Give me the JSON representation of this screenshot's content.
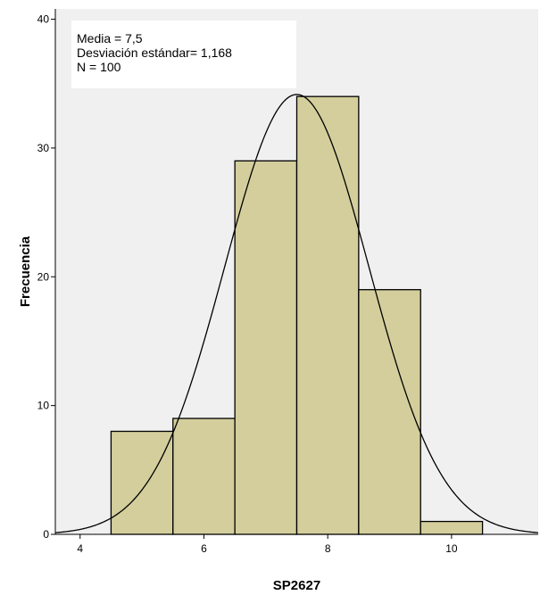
{
  "chart_data": {
    "type": "bar",
    "subtype": "histogram",
    "xlabel": "SP2627",
    "ylabel": "Frecuencia",
    "bins": [
      {
        "x0": 4.5,
        "x1": 5.5,
        "value": 8
      },
      {
        "x0": 5.5,
        "x1": 6.5,
        "value": 9
      },
      {
        "x0": 6.5,
        "x1": 7.5,
        "value": 29
      },
      {
        "x0": 7.5,
        "x1": 8.5,
        "value": 34
      },
      {
        "x0": 8.5,
        "x1": 9.5,
        "value": 19
      },
      {
        "x0": 9.5,
        "x1": 10.5,
        "value": 1
      }
    ],
    "xlim": [
      3.6,
      11.4
    ],
    "ylim": [
      0,
      40.8
    ],
    "xticks": [
      4,
      6,
      8,
      10
    ],
    "yticks": [
      0,
      10,
      20,
      30,
      40
    ],
    "normal_curve": {
      "mean": 7.5,
      "std": 1.168,
      "n": 100,
      "bin_width": 1
    },
    "stats_box": {
      "line1": "Media = 7,5",
      "line2": "Desviación estándar= 1,168",
      "line3": "N = 100"
    },
    "colors": {
      "plot_background": "#f0f0f0",
      "bar_fill": "#d3ce9c",
      "bar_stroke": "#000000",
      "curve": "#000000",
      "stats_box_fill": "#ffffff"
    },
    "grid": false
  }
}
